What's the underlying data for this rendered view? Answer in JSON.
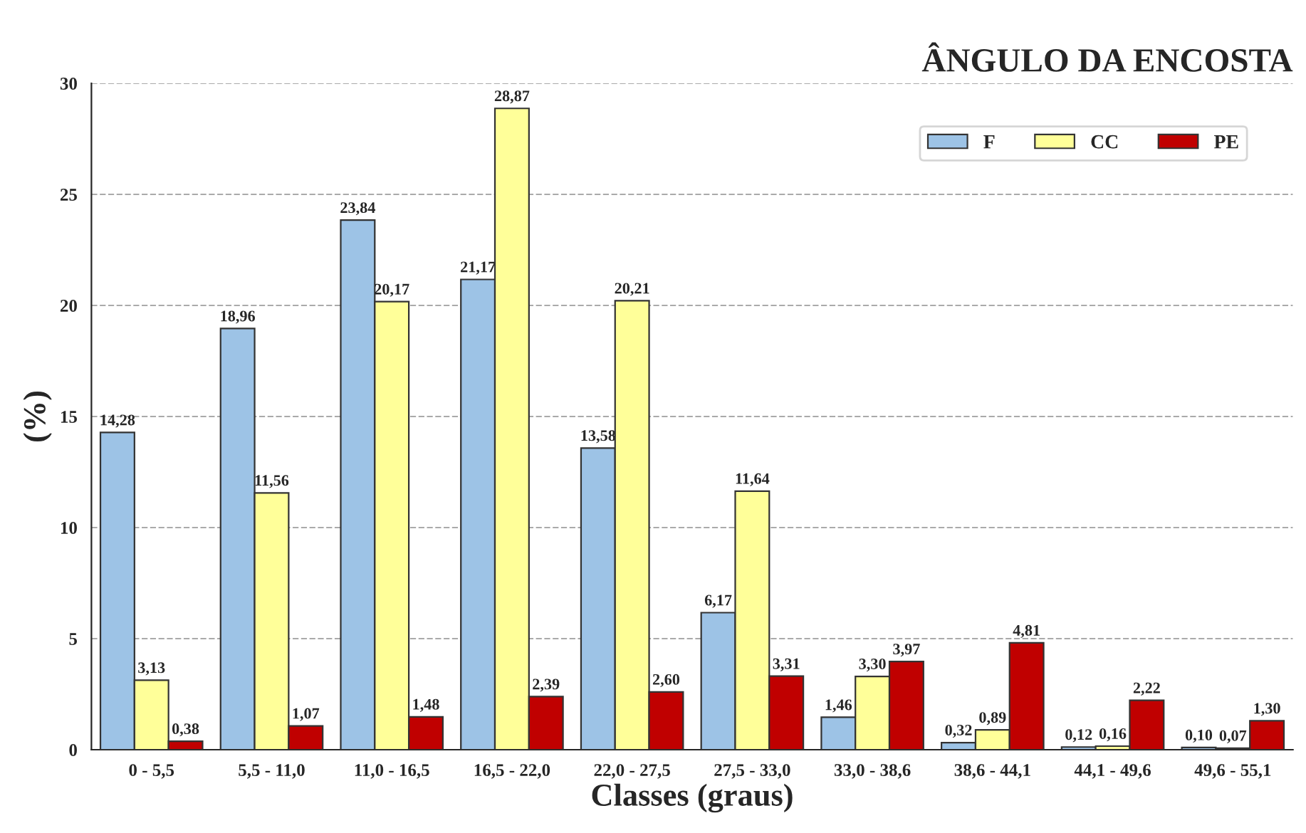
{
  "chart_data": {
    "type": "bar",
    "title": "ÂNGULO DA ENCOSTA",
    "xlabel": "Classes (graus)",
    "ylabel": "(%)",
    "categories": [
      "0 - 5,5",
      "5,5 - 11,0",
      "11,0 - 16,5",
      "16,5 - 22,0",
      "22,0 - 27,5",
      "27,5 - 33,0",
      "33,0 - 38,6",
      "38,6 - 44,1",
      "44,1 - 49,6",
      "49,6 - 55,1"
    ],
    "series": [
      {
        "name": "F",
        "color": "#9dc3e6",
        "values": [
          14.28,
          18.96,
          23.84,
          21.17,
          13.58,
          6.17,
          1.46,
          0.32,
          0.12,
          0.1
        ],
        "value_labels": [
          "14,28",
          "18,96",
          "23,84",
          "21,17",
          "13,58",
          "6,17",
          "1,46",
          "0,32",
          "0,12",
          "0,10"
        ]
      },
      {
        "name": "CC",
        "color": "#ffff99",
        "values": [
          3.13,
          11.56,
          20.17,
          28.87,
          20.21,
          11.64,
          3.3,
          0.89,
          0.16,
          0.07
        ],
        "value_labels": [
          "3,13",
          "11,56",
          "20,17",
          "28,87",
          "20,21",
          "11,64",
          "3,30",
          "0,89",
          "0,16",
          "0,07"
        ]
      },
      {
        "name": "PE",
        "color": "#c00000",
        "values": [
          0.38,
          1.07,
          1.48,
          2.39,
          2.6,
          3.31,
          3.97,
          4.81,
          2.22,
          1.3
        ],
        "value_labels": [
          "0,38",
          "1,07",
          "1,48",
          "2,39",
          "2,60",
          "3,31",
          "3,97",
          "4,81",
          "2,22",
          "1,30"
        ]
      }
    ],
    "ylim": [
      0,
      30
    ],
    "yticks": [
      0,
      5,
      10,
      15,
      20,
      25,
      30
    ],
    "grid": "y",
    "legend": "top right"
  }
}
